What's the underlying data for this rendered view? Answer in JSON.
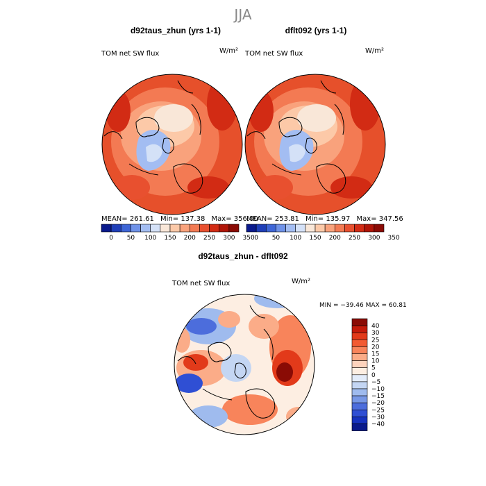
{
  "page_title": "JJA",
  "panels": [
    {
      "title": "d92taus_zhun (yrs 1-1)",
      "field_label": "TOM net SW flux",
      "units": "W/m²",
      "stats": {
        "mean_label": "MEAN=",
        "mean": "261.61",
        "min_label": "Min=",
        "min": "137.38",
        "max_label": "Max=",
        "max": "356.00"
      }
    },
    {
      "title": "dflt092 (yrs 1-1)",
      "field_label": "TOM net SW flux",
      "units": "W/m²",
      "stats": {
        "mean_label": "MEAN=",
        "mean": "253.81",
        "min_label": "Min=",
        "min": "135.97",
        "max_label": "Max=",
        "max": "347.56"
      }
    }
  ],
  "abs_colorbar": {
    "colors": [
      "#0a1a8c",
      "#1f3fb8",
      "#3f66d6",
      "#6f92e8",
      "#a3bdf2",
      "#d4e1f7",
      "#f9e7d8",
      "#fcc9a8",
      "#f9a27c",
      "#f37a53",
      "#e8502f",
      "#d22b14",
      "#b01508",
      "#8a0b05"
    ],
    "tick_labels": [
      "0",
      "50",
      "100",
      "150",
      "200",
      "250",
      "300",
      "350"
    ]
  },
  "diff_panel": {
    "title": "d92taus_zhun - dflt092",
    "field_label": "TOM net SW flux",
    "units": "W/m²",
    "minmax": "MIN = −39.46  MAX =   60.81"
  },
  "diff_colorbar": {
    "colors": [
      "#8a0b05",
      "#c41a0a",
      "#e23a1a",
      "#f25a32",
      "#f8845b",
      "#fbac88",
      "#fdd3bd",
      "#fdeee2",
      "#e3ecfa",
      "#c4d6f3",
      "#9fbbee",
      "#7898e6",
      "#4c6ddc",
      "#2f4fd4",
      "#1632bf",
      "#0a1a8c"
    ],
    "tick_labels": [
      "40",
      "30",
      "25",
      "20",
      "15",
      "10",
      "5",
      "0",
      "−5",
      "−10",
      "−15",
      "−20",
      "−25",
      "−30",
      "−40"
    ]
  },
  "colors": {
    "map_outline": "#000000",
    "background": "#ffffff"
  }
}
